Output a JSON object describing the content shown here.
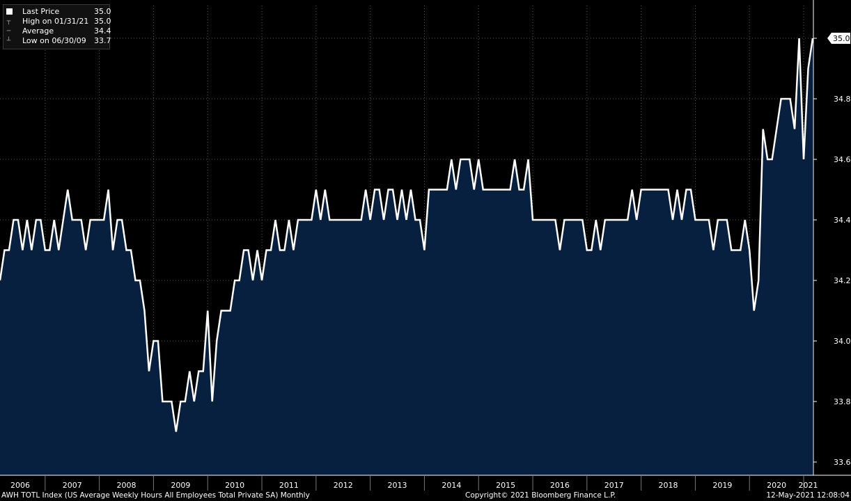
{
  "legend": {
    "items": [
      {
        "label": "Last Price",
        "value": "35.0",
        "icon": "filled-square-icon"
      },
      {
        "label": "High on 01/31/21",
        "value": "35.0",
        "icon": "high-marker-icon"
      },
      {
        "label": "Average",
        "value": "34.4",
        "icon": "average-marker-icon"
      },
      {
        "label": "Low on 06/30/09",
        "value": "33.7",
        "icon": "low-marker-icon"
      }
    ]
  },
  "footer": {
    "left": "AWH TOTL Index (US Average Weekly Hours All Employees Total Private SA)  Monthly",
    "center": "Copyright© 2021 Bloomberg Finance L.P.",
    "right": "12-May-2021 12:08:04"
  },
  "colors": {
    "background": "#000000",
    "area_fill": "#08203f",
    "line": "#ffffff",
    "grid": "#5a5a5a",
    "last_price_tag": "#ffffff"
  },
  "chart_data": {
    "type": "area",
    "title": "",
    "xlabel": "",
    "ylabel": "",
    "ylim": [
      33.6,
      35.0
    ],
    "y_ticks": [
      "33.6",
      "33.8",
      "34.0",
      "34.2",
      "34.4",
      "34.6",
      "34.8",
      "35.0"
    ],
    "x_tick_labels": [
      "2006",
      "2007",
      "2008",
      "2009",
      "2010",
      "2011",
      "2012",
      "2013",
      "2014",
      "2015",
      "2016",
      "2017",
      "2018",
      "2019",
      "2020",
      "2021"
    ],
    "grid": true,
    "legend_placement": "top-left",
    "last_price_label": "35.0",
    "x_start": "2006-03",
    "x_end": "2021-04",
    "series": [
      {
        "name": "Last Price",
        "frequency": "monthly",
        "values": [
          34.2,
          34.3,
          34.3,
          34.4,
          34.4,
          34.3,
          34.4,
          34.3,
          34.4,
          34.4,
          34.3,
          34.3,
          34.4,
          34.3,
          34.4,
          34.5,
          34.4,
          34.4,
          34.4,
          34.3,
          34.4,
          34.4,
          34.4,
          34.4,
          34.5,
          34.3,
          34.4,
          34.4,
          34.3,
          34.3,
          34.2,
          34.2,
          34.1,
          33.9,
          34.0,
          34.0,
          33.8,
          33.8,
          33.8,
          33.7,
          33.8,
          33.8,
          33.9,
          33.8,
          33.9,
          33.9,
          34.1,
          33.8,
          34.0,
          34.1,
          34.1,
          34.1,
          34.2,
          34.2,
          34.3,
          34.3,
          34.2,
          34.3,
          34.2,
          34.3,
          34.3,
          34.4,
          34.3,
          34.3,
          34.4,
          34.3,
          34.4,
          34.4,
          34.4,
          34.4,
          34.5,
          34.4,
          34.5,
          34.4,
          34.4,
          34.4,
          34.4,
          34.4,
          34.4,
          34.4,
          34.4,
          34.5,
          34.4,
          34.5,
          34.5,
          34.4,
          34.5,
          34.5,
          34.4,
          34.5,
          34.4,
          34.5,
          34.4,
          34.4,
          34.3,
          34.5,
          34.5,
          34.5,
          34.5,
          34.5,
          34.6,
          34.5,
          34.6,
          34.6,
          34.6,
          34.5,
          34.6,
          34.5,
          34.5,
          34.5,
          34.5,
          34.5,
          34.5,
          34.5,
          34.6,
          34.5,
          34.5,
          34.6,
          34.4,
          34.4,
          34.4,
          34.4,
          34.4,
          34.4,
          34.3,
          34.4,
          34.4,
          34.4,
          34.4,
          34.4,
          34.3,
          34.3,
          34.4,
          34.3,
          34.4,
          34.4,
          34.4,
          34.4,
          34.4,
          34.4,
          34.5,
          34.4,
          34.5,
          34.5,
          34.5,
          34.5,
          34.5,
          34.5,
          34.5,
          34.4,
          34.5,
          34.4,
          34.5,
          34.5,
          34.4,
          34.4,
          34.4,
          34.4,
          34.3,
          34.4,
          34.4,
          34.4,
          34.3,
          34.3,
          34.3,
          34.4,
          34.3,
          34.1,
          34.2,
          34.7,
          34.6,
          34.6,
          34.7,
          34.8,
          34.8,
          34.8,
          34.7,
          35.0,
          34.6,
          34.9,
          35.0
        ]
      }
    ]
  }
}
